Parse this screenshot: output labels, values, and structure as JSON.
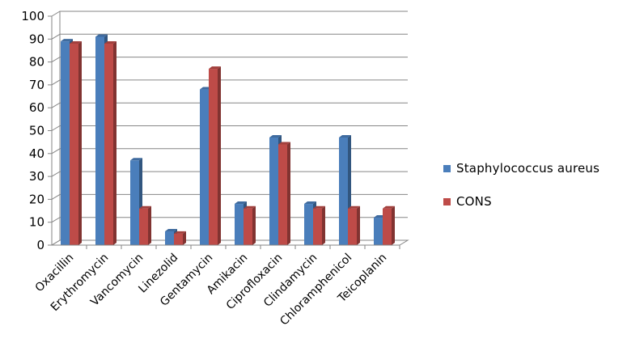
{
  "chart_data": {
    "type": "bar",
    "categories": [
      "Oxacillin",
      "Erythromycin",
      "Vancomycin",
      "Linezolid",
      "Gentamycin",
      "Amikacin",
      "Ciprofloxacin",
      "Clindamycin",
      "Chloramphenicol",
      "Teicoplanin"
    ],
    "series": [
      {
        "name": "Staphylococcus aureus",
        "color": "#4a7ebb",
        "values": [
          89,
          91,
          37,
          6,
          68,
          18,
          47,
          18,
          47,
          12
        ]
      },
      {
        "name": "CONS",
        "color": "#be4b48",
        "values": [
          88,
          88,
          16,
          5,
          77,
          16,
          44,
          16,
          16,
          16
        ]
      }
    ],
    "ylim": [
      0,
      100
    ],
    "yticks": [
      0,
      10,
      20,
      30,
      40,
      50,
      60,
      70,
      80,
      90,
      100
    ],
    "grid": true,
    "legend_position": "right"
  }
}
